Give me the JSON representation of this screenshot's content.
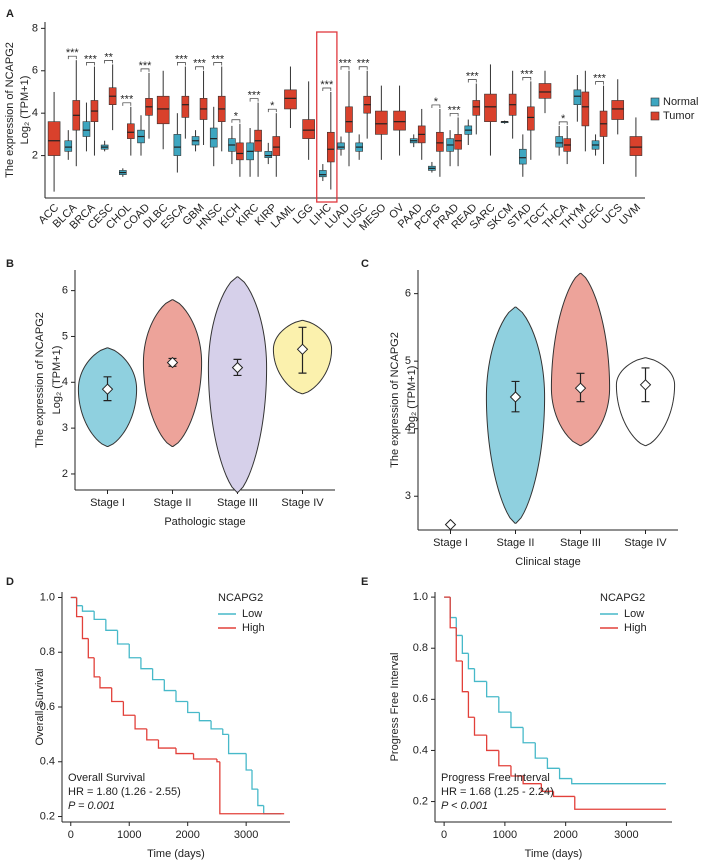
{
  "chart_data": [
    {
      "type": "box",
      "label": "A",
      "ylabel": [
        "The expression of NCAPG2",
        "Log₂ (TPM+1)"
      ],
      "categories": [
        "ACC",
        "BLCA",
        "BRCA",
        "CESC",
        "CHOL",
        "COAD",
        "DLBC",
        "ESCA",
        "GBM",
        "HNSC",
        "KICH",
        "KIRC",
        "KIRP",
        "LAML",
        "LGG",
        "LIHC",
        "LUAD",
        "LUSC",
        "MESO",
        "OV",
        "PAAD",
        "PCPG",
        "PRAD",
        "READ",
        "SARC",
        "SKCM",
        "STAD",
        "TGCT",
        "THCA",
        "THYM",
        "UCEC",
        "UCS",
        "UVM"
      ],
      "series": [
        {
          "name": "Normal",
          "color": "#3ea6c0",
          "values": [
            null,
            [
              1.8,
              2.2,
              2.4,
              2.7,
              3.2
            ],
            [
              2.2,
              2.9,
              3.2,
              3.6,
              4.5
            ],
            [
              2.2,
              2.3,
              2.4,
              2.5,
              2.7
            ],
            [
              1.0,
              1.1,
              1.2,
              1.3,
              1.4
            ],
            [
              2.0,
              2.6,
              2.9,
              3.2,
              3.9
            ],
            null,
            [
              1.2,
              2.0,
              2.4,
              3.0,
              4.0
            ],
            [
              2.2,
              2.5,
              2.7,
              2.9,
              3.2
            ],
            [
              1.5,
              2.4,
              2.8,
              3.3,
              4.3
            ],
            [
              1.6,
              2.2,
              2.5,
              2.8,
              3.4
            ],
            [
              1.0,
              1.8,
              2.2,
              2.6,
              3.3
            ],
            [
              1.6,
              1.9,
              2.0,
              2.2,
              2.6
            ],
            null,
            null,
            [
              0.8,
              1.0,
              1.1,
              1.3,
              1.6
            ],
            [
              2.0,
              2.3,
              2.4,
              2.6,
              2.9
            ],
            [
              1.8,
              2.2,
              2.4,
              2.6,
              3.0
            ],
            null,
            null,
            [
              2.4,
              2.6,
              2.7,
              2.8,
              3.0
            ],
            [
              1.2,
              1.3,
              1.4,
              1.5,
              1.7
            ],
            [
              1.5,
              2.2,
              2.5,
              2.8,
              3.2
            ],
            [
              2.5,
              3.0,
              3.2,
              3.4,
              3.7
            ],
            null,
            [
              3.5,
              3.55,
              3.6,
              3.6,
              3.65
            ],
            [
              1.0,
              1.6,
              1.9,
              2.3,
              3.0
            ],
            null,
            [
              2.0,
              2.4,
              2.6,
              2.9,
              3.4
            ],
            [
              3.6,
              4.4,
              4.8,
              5.1,
              5.8
            ],
            [
              2.0,
              2.3,
              2.5,
              2.7,
              3.0
            ],
            null,
            null
          ]
        },
        {
          "name": "Tumor",
          "color": "#d9412c",
          "values": [
            [
              0.3,
              2.0,
              2.7,
              3.6,
              5.0
            ],
            [
              1.5,
              3.2,
              3.9,
              4.6,
              6.5
            ],
            [
              2.0,
              3.6,
              4.1,
              4.6,
              6.2
            ],
            [
              3.2,
              4.4,
              4.8,
              5.2,
              6.3
            ],
            [
              2.0,
              2.8,
              3.1,
              3.5,
              4.3
            ],
            [
              2.8,
              3.9,
              4.3,
              4.7,
              5.9
            ],
            [
              2.3,
              3.5,
              4.2,
              4.8,
              6.0
            ],
            [
              2.8,
              3.8,
              4.4,
              4.8,
              6.2
            ],
            [
              2.5,
              3.7,
              4.2,
              4.7,
              6.0
            ],
            [
              2.2,
              3.6,
              4.2,
              4.8,
              6.2
            ],
            [
              1.0,
              1.8,
              2.1,
              2.6,
              3.5
            ],
            [
              1.0,
              2.2,
              2.7,
              3.2,
              4.5
            ],
            [
              1.0,
              2.0,
              2.4,
              2.9,
              4.0
            ],
            [
              3.3,
              4.2,
              4.7,
              5.1,
              6.2
            ],
            [
              1.8,
              2.8,
              3.2,
              3.7,
              5.5
            ],
            [
              0.4,
              1.7,
              2.3,
              3.1,
              5.0
            ],
            [
              1.5,
              3.1,
              3.6,
              4.3,
              6.0
            ],
            [
              2.8,
              4.0,
              4.4,
              4.8,
              6.0
            ],
            [
              1.8,
              3.0,
              3.5,
              4.1,
              5.3
            ],
            [
              2.0,
              3.2,
              3.6,
              4.1,
              5.3
            ],
            [
              1.8,
              2.6,
              3.0,
              3.4,
              4.2
            ],
            [
              1.0,
              2.2,
              2.6,
              3.1,
              4.2
            ],
            [
              1.5,
              2.3,
              2.7,
              3.0,
              3.8
            ],
            [
              3.0,
              3.9,
              4.3,
              4.6,
              5.4
            ],
            [
              2.0,
              3.6,
              4.3,
              4.9,
              6.3
            ],
            [
              2.8,
              3.9,
              4.4,
              4.9,
              6.0
            ],
            [
              1.8,
              3.2,
              3.8,
              4.3,
              5.5
            ],
            [
              4.0,
              4.7,
              5.0,
              5.4,
              6.0
            ],
            [
              1.6,
              2.2,
              2.5,
              2.8,
              3.4
            ],
            [
              2.2,
              3.4,
              4.3,
              5.0,
              6.0
            ],
            [
              1.6,
              2.9,
              3.5,
              4.1,
              5.3
            ],
            [
              3.0,
              3.7,
              4.2,
              4.6,
              5.6
            ],
            [
              1.0,
              2.0,
              2.4,
              2.9,
              3.8
            ]
          ]
        }
      ],
      "significance": [
        null,
        "***",
        "***",
        "**",
        "***",
        "***",
        null,
        "***",
        "***",
        "***",
        "*",
        "***",
        "*",
        null,
        null,
        "***",
        "***",
        "***",
        null,
        null,
        null,
        "*",
        "***",
        "***",
        null,
        null,
        "***",
        null,
        "*",
        null,
        "***",
        null,
        null
      ],
      "highlight_category": "LIHC",
      "ylim": [
        0,
        8.3
      ],
      "yticks": [
        2,
        4,
        6,
        8
      ],
      "legend": "right"
    },
    {
      "type": "violin",
      "label": "B",
      "ylabel": [
        "The expression of NCAPG2",
        "Log₂ (TPM+1)"
      ],
      "xlabel": "Pathologic stage",
      "categories": [
        "Stage I",
        "Stage II",
        "Stage III",
        "Stage IV"
      ],
      "colors": [
        "#8fd0df",
        "#eda39a",
        "#d6d0ea",
        "#fbf1ad"
      ],
      "min": [
        2.6,
        2.6,
        1.6,
        3.75
      ],
      "max": [
        4.75,
        5.8,
        6.3,
        5.35
      ],
      "mean": [
        3.85,
        4.43,
        4.32,
        4.72
      ],
      "err": [
        [
          3.6,
          4.12
        ],
        [
          4.35,
          4.52
        ],
        [
          4.15,
          4.5
        ],
        [
          4.2,
          5.2
        ]
      ],
      "ylim": [
        1.65,
        6.45
      ],
      "yticks": [
        2,
        3,
        4,
        5,
        6
      ]
    },
    {
      "type": "violin",
      "label": "C",
      "ylabel": [
        "The expression of NCAPG2",
        "Log₂ (TPM+1)"
      ],
      "xlabel": "Clinical stage",
      "categories": [
        "Stage I",
        "Stage II",
        "Stage III",
        "Stage IV"
      ],
      "colors": [
        "#8fd0df",
        "#8fd0df",
        "#eda39a",
        "#ffffff"
      ],
      "min": [
        2.58,
        2.6,
        3.75,
        3.75
      ],
      "max": [
        2.58,
        5.8,
        6.3,
        5.05
      ],
      "mean": [
        2.58,
        4.47,
        4.6,
        4.65
      ],
      "err": [
        null,
        [
          4.25,
          4.7
        ],
        [
          4.4,
          4.82
        ],
        [
          4.4,
          4.9
        ]
      ],
      "ylim": [
        2.5,
        6.35
      ],
      "yticks": [
        3,
        4,
        5,
        6
      ]
    },
    {
      "type": "km",
      "label": "D",
      "ylabel": [
        "Overall Survival"
      ],
      "xlabel": "Time (days)",
      "legend_title": "NCAPG2",
      "annotations": [
        "Overall Survival",
        "HR = 1.80 (1.26 -  2.55)",
        "P = 0.001"
      ],
      "series": [
        {
          "name": "Low",
          "color": "#47b9c9",
          "x": [
            0,
            100,
            200,
            400,
            600,
            800,
            1000,
            1200,
            1400,
            1600,
            1800,
            2000,
            2200,
            2400,
            2600,
            2700,
            3000,
            3100,
            3200,
            3300,
            3600
          ],
          "y": [
            1,
            0.97,
            0.95,
            0.92,
            0.88,
            0.83,
            0.78,
            0.74,
            0.7,
            0.66,
            0.62,
            0.58,
            0.55,
            0.52,
            0.5,
            0.43,
            0.37,
            0.3,
            0.24,
            0.21,
            0.21
          ]
        },
        {
          "name": "High",
          "color": "#e2403a",
          "x": [
            0,
            100,
            200,
            300,
            400,
            500,
            700,
            900,
            1100,
            1300,
            1500,
            1800,
            2100,
            2500,
            2550,
            3650
          ],
          "y": [
            1,
            0.93,
            0.85,
            0.78,
            0.71,
            0.67,
            0.62,
            0.57,
            0.52,
            0.48,
            0.45,
            0.43,
            0.41,
            0.4,
            0.21,
            0.21
          ]
        }
      ],
      "xlim": [
        -150,
        3750
      ],
      "xticks": [
        0,
        1000,
        2000,
        3000
      ],
      "ylim": [
        0.18,
        1.02
      ],
      "yticks": [
        0.2,
        0.4,
        0.6,
        0.8,
        {
          "value": 1,
          "label": "1.0"
        }
      ],
      "legend": "top-right"
    },
    {
      "type": "km",
      "label": "E",
      "ylabel": [
        "Progress Free Interval"
      ],
      "xlabel": "Time (days)",
      "legend_title": "NCAPG2",
      "annotations": [
        "Progress Free Interval",
        "HR = 1.68 (1.25 - 2.24)",
        "P < 0.001"
      ],
      "series": [
        {
          "name": "Low",
          "color": "#47b9c9",
          "x": [
            0,
            100,
            200,
            300,
            400,
            500,
            700,
            900,
            1100,
            1300,
            1500,
            1700,
            1900,
            2100,
            3650
          ],
          "y": [
            1,
            0.92,
            0.85,
            0.78,
            0.72,
            0.67,
            0.61,
            0.55,
            0.49,
            0.43,
            0.37,
            0.33,
            0.29,
            0.27,
            0.27
          ]
        },
        {
          "name": "High",
          "color": "#e2403a",
          "x": [
            0,
            100,
            200,
            300,
            400,
            500,
            700,
            900,
            1100,
            1300,
            1600,
            1800,
            2150,
            3650
          ],
          "y": [
            1,
            0.88,
            0.75,
            0.63,
            0.53,
            0.46,
            0.4,
            0.34,
            0.3,
            0.27,
            0.24,
            0.22,
            0.17,
            0.17
          ]
        }
      ],
      "xlim": [
        -150,
        3750
      ],
      "xticks": [
        0,
        1000,
        2000,
        3000
      ],
      "ylim": [
        0.12,
        1.02
      ],
      "yticks": [
        0.2,
        0.4,
        0.6,
        0.8,
        {
          "value": 1,
          "label": "1.0"
        }
      ],
      "legend": "top-right"
    }
  ]
}
